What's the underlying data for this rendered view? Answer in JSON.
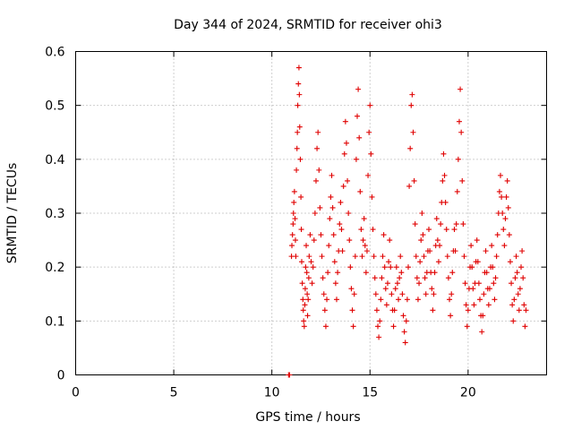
{
  "chart_data": {
    "type": "scatter",
    "title": "Day 344 of 2024, SRMTID for receiver ohi3",
    "xlabel": "GPS time / hours",
    "ylabel": "SRMTID / TECUs",
    "xlim": [
      0,
      24
    ],
    "ylim": [
      0,
      0.6
    ],
    "xticks": [
      "0",
      "5",
      "10",
      "15",
      "20"
    ],
    "xtick_values": [
      0,
      5,
      10,
      15,
      20
    ],
    "yticks": [
      "0",
      "0.1",
      "0.2",
      "0.3",
      "0.4",
      "0.5",
      "0.6"
    ],
    "ytick_values": [
      0,
      0.1,
      0.2,
      0.3,
      0.4,
      0.5,
      0.6
    ],
    "grid": true,
    "marker": "plus",
    "series": [
      {
        "name": "SRMTID",
        "color": "#e00000",
        "points": [
          [
            10.85,
            0.0
          ],
          [
            10.9,
            0.0
          ],
          [
            11.0,
            0.22
          ],
          [
            11.02,
            0.24
          ],
          [
            11.05,
            0.26
          ],
          [
            11.08,
            0.28
          ],
          [
            11.1,
            0.3
          ],
          [
            11.12,
            0.32
          ],
          [
            11.15,
            0.34
          ],
          [
            11.18,
            0.29
          ],
          [
            11.2,
            0.25
          ],
          [
            11.22,
            0.22
          ],
          [
            11.25,
            0.38
          ],
          [
            11.28,
            0.42
          ],
          [
            11.3,
            0.45
          ],
          [
            11.32,
            0.5
          ],
          [
            11.35,
            0.54
          ],
          [
            11.38,
            0.57
          ],
          [
            11.4,
            0.52
          ],
          [
            11.42,
            0.46
          ],
          [
            11.45,
            0.4
          ],
          [
            11.48,
            0.33
          ],
          [
            11.5,
            0.27
          ],
          [
            11.52,
            0.21
          ],
          [
            11.55,
            0.17
          ],
          [
            11.58,
            0.14
          ],
          [
            11.6,
            0.12
          ],
          [
            11.62,
            0.1
          ],
          [
            11.65,
            0.09
          ],
          [
            11.68,
            0.13
          ],
          [
            11.7,
            0.16
          ],
          [
            11.72,
            0.2
          ],
          [
            11.75,
            0.24
          ],
          [
            11.78,
            0.19
          ],
          [
            11.8,
            0.15
          ],
          [
            11.82,
            0.11
          ],
          [
            11.85,
            0.14
          ],
          [
            11.88,
            0.18
          ],
          [
            11.9,
            0.22
          ],
          [
            11.95,
            0.26
          ],
          [
            12.0,
            0.21
          ],
          [
            12.05,
            0.17
          ],
          [
            12.1,
            0.2
          ],
          [
            12.15,
            0.25
          ],
          [
            12.2,
            0.3
          ],
          [
            12.25,
            0.36
          ],
          [
            12.3,
            0.42
          ],
          [
            12.35,
            0.45
          ],
          [
            12.4,
            0.38
          ],
          [
            12.45,
            0.31
          ],
          [
            12.5,
            0.26
          ],
          [
            12.55,
            0.22
          ],
          [
            12.6,
            0.18
          ],
          [
            12.65,
            0.15
          ],
          [
            12.7,
            0.12
          ],
          [
            12.75,
            0.09
          ],
          [
            12.8,
            0.14
          ],
          [
            12.85,
            0.19
          ],
          [
            12.9,
            0.24
          ],
          [
            12.95,
            0.29
          ],
          [
            13.0,
            0.33
          ],
          [
            13.05,
            0.37
          ],
          [
            13.1,
            0.31
          ],
          [
            13.15,
            0.26
          ],
          [
            13.2,
            0.21
          ],
          [
            13.25,
            0.17
          ],
          [
            13.3,
            0.14
          ],
          [
            13.35,
            0.19
          ],
          [
            13.4,
            0.23
          ],
          [
            13.45,
            0.28
          ],
          [
            13.5,
            0.32
          ],
          [
            13.55,
            0.27
          ],
          [
            13.6,
            0.23
          ],
          [
            13.65,
            0.35
          ],
          [
            13.7,
            0.41
          ],
          [
            13.75,
            0.47
          ],
          [
            13.8,
            0.43
          ],
          [
            13.85,
            0.36
          ],
          [
            13.9,
            0.3
          ],
          [
            13.95,
            0.25
          ],
          [
            14.0,
            0.2
          ],
          [
            14.05,
            0.16
          ],
          [
            14.1,
            0.12
          ],
          [
            14.15,
            0.09
          ],
          [
            14.2,
            0.15
          ],
          [
            14.25,
            0.22
          ],
          [
            14.3,
            0.4
          ],
          [
            14.35,
            0.48
          ],
          [
            14.4,
            0.53
          ],
          [
            14.45,
            0.44
          ],
          [
            14.5,
            0.34
          ],
          [
            14.55,
            0.27
          ],
          [
            14.6,
            0.22
          ],
          [
            14.65,
            0.25
          ],
          [
            14.7,
            0.29
          ],
          [
            14.75,
            0.24
          ],
          [
            14.8,
            0.19
          ],
          [
            14.85,
            0.23
          ],
          [
            14.9,
            0.37
          ],
          [
            14.95,
            0.45
          ],
          [
            15.0,
            0.5
          ],
          [
            15.05,
            0.41
          ],
          [
            15.1,
            0.33
          ],
          [
            15.15,
            0.27
          ],
          [
            15.2,
            0.22
          ],
          [
            15.25,
            0.18
          ],
          [
            15.3,
            0.15
          ],
          [
            15.35,
            0.12
          ],
          [
            15.4,
            0.09
          ],
          [
            15.45,
            0.07
          ],
          [
            15.5,
            0.1
          ],
          [
            15.55,
            0.14
          ],
          [
            15.6,
            0.18
          ],
          [
            15.65,
            0.22
          ],
          [
            15.7,
            0.26
          ],
          [
            15.75,
            0.2
          ],
          [
            15.8,
            0.16
          ],
          [
            15.85,
            0.13
          ],
          [
            15.9,
            0.17
          ],
          [
            15.95,
            0.21
          ],
          [
            16.0,
            0.25
          ],
          [
            16.05,
            0.2
          ],
          [
            16.1,
            0.15
          ],
          [
            16.15,
            0.12
          ],
          [
            16.2,
            0.09
          ],
          [
            16.25,
            0.12
          ],
          [
            16.3,
            0.16
          ],
          [
            16.35,
            0.2
          ],
          [
            16.4,
            0.17
          ],
          [
            16.45,
            0.14
          ],
          [
            16.5,
            0.18
          ],
          [
            16.55,
            0.22
          ],
          [
            16.6,
            0.19
          ],
          [
            16.65,
            0.15
          ],
          [
            16.7,
            0.11
          ],
          [
            16.75,
            0.08
          ],
          [
            16.8,
            0.06
          ],
          [
            16.85,
            0.1
          ],
          [
            16.9,
            0.14
          ],
          [
            16.95,
            0.2
          ],
          [
            17.0,
            0.35
          ],
          [
            17.05,
            0.42
          ],
          [
            17.1,
            0.5
          ],
          [
            17.15,
            0.52
          ],
          [
            17.2,
            0.45
          ],
          [
            17.25,
            0.36
          ],
          [
            17.3,
            0.28
          ],
          [
            17.35,
            0.22
          ],
          [
            17.4,
            0.18
          ],
          [
            17.45,
            0.14
          ],
          [
            17.5,
            0.17
          ],
          [
            17.55,
            0.21
          ],
          [
            17.6,
            0.25
          ],
          [
            17.65,
            0.3
          ],
          [
            17.7,
            0.26
          ],
          [
            17.75,
            0.22
          ],
          [
            17.8,
            0.18
          ],
          [
            17.85,
            0.15
          ],
          [
            17.9,
            0.19
          ],
          [
            17.95,
            0.23
          ],
          [
            18.0,
            0.27
          ],
          [
            18.05,
            0.23
          ],
          [
            18.1,
            0.19
          ],
          [
            18.15,
            0.16
          ],
          [
            18.2,
            0.12
          ],
          [
            18.25,
            0.15
          ],
          [
            18.3,
            0.19
          ],
          [
            18.35,
            0.24
          ],
          [
            18.4,
            0.29
          ],
          [
            18.45,
            0.25
          ],
          [
            18.5,
            0.21
          ],
          [
            18.55,
            0.24
          ],
          [
            18.6,
            0.28
          ],
          [
            18.65,
            0.32
          ],
          [
            18.7,
            0.36
          ],
          [
            18.75,
            0.41
          ],
          [
            18.8,
            0.37
          ],
          [
            18.85,
            0.32
          ],
          [
            18.9,
            0.27
          ],
          [
            18.95,
            0.22
          ],
          [
            19.0,
            0.18
          ],
          [
            19.05,
            0.14
          ],
          [
            19.1,
            0.11
          ],
          [
            19.15,
            0.15
          ],
          [
            19.2,
            0.19
          ],
          [
            19.25,
            0.23
          ],
          [
            19.3,
            0.27
          ],
          [
            19.35,
            0.23
          ],
          [
            19.4,
            0.28
          ],
          [
            19.45,
            0.34
          ],
          [
            19.5,
            0.4
          ],
          [
            19.55,
            0.47
          ],
          [
            19.6,
            0.53
          ],
          [
            19.65,
            0.45
          ],
          [
            19.7,
            0.36
          ],
          [
            19.75,
            0.28
          ],
          [
            19.8,
            0.22
          ],
          [
            19.85,
            0.17
          ],
          [
            19.9,
            0.13
          ],
          [
            19.95,
            0.09
          ],
          [
            20.0,
            0.12
          ],
          [
            20.05,
            0.16
          ],
          [
            20.1,
            0.2
          ],
          [
            20.15,
            0.24
          ],
          [
            20.2,
            0.2
          ],
          [
            20.25,
            0.16
          ],
          [
            20.3,
            0.13
          ],
          [
            20.35,
            0.17
          ],
          [
            20.4,
            0.21
          ],
          [
            20.45,
            0.25
          ],
          [
            20.5,
            0.21
          ],
          [
            20.55,
            0.17
          ],
          [
            20.6,
            0.14
          ],
          [
            20.65,
            0.11
          ],
          [
            20.7,
            0.08
          ],
          [
            20.75,
            0.11
          ],
          [
            20.8,
            0.15
          ],
          [
            20.85,
            0.19
          ],
          [
            20.9,
            0.23
          ],
          [
            20.95,
            0.19
          ],
          [
            21.0,
            0.16
          ],
          [
            21.05,
            0.13
          ],
          [
            21.1,
            0.16
          ],
          [
            21.15,
            0.2
          ],
          [
            21.2,
            0.24
          ],
          [
            21.25,
            0.2
          ],
          [
            21.3,
            0.17
          ],
          [
            21.35,
            0.14
          ],
          [
            21.4,
            0.18
          ],
          [
            21.45,
            0.22
          ],
          [
            21.5,
            0.26
          ],
          [
            21.55,
            0.3
          ],
          [
            21.6,
            0.34
          ],
          [
            21.65,
            0.37
          ],
          [
            21.7,
            0.33
          ],
          [
            21.75,
            0.3
          ],
          [
            21.8,
            0.27
          ],
          [
            21.85,
            0.24
          ],
          [
            21.9,
            0.29
          ],
          [
            21.95,
            0.33
          ],
          [
            22.0,
            0.36
          ],
          [
            22.05,
            0.31
          ],
          [
            22.1,
            0.26
          ],
          [
            22.15,
            0.21
          ],
          [
            22.2,
            0.17
          ],
          [
            22.25,
            0.13
          ],
          [
            22.3,
            0.1
          ],
          [
            22.35,
            0.14
          ],
          [
            22.4,
            0.18
          ],
          [
            22.45,
            0.22
          ],
          [
            22.5,
            0.19
          ],
          [
            22.55,
            0.15
          ],
          [
            22.6,
            0.12
          ],
          [
            22.65,
            0.16
          ],
          [
            22.7,
            0.2
          ],
          [
            22.75,
            0.23
          ],
          [
            22.8,
            0.18
          ],
          [
            22.85,
            0.13
          ],
          [
            22.9,
            0.09
          ],
          [
            22.95,
            0.12
          ]
        ]
      }
    ]
  }
}
